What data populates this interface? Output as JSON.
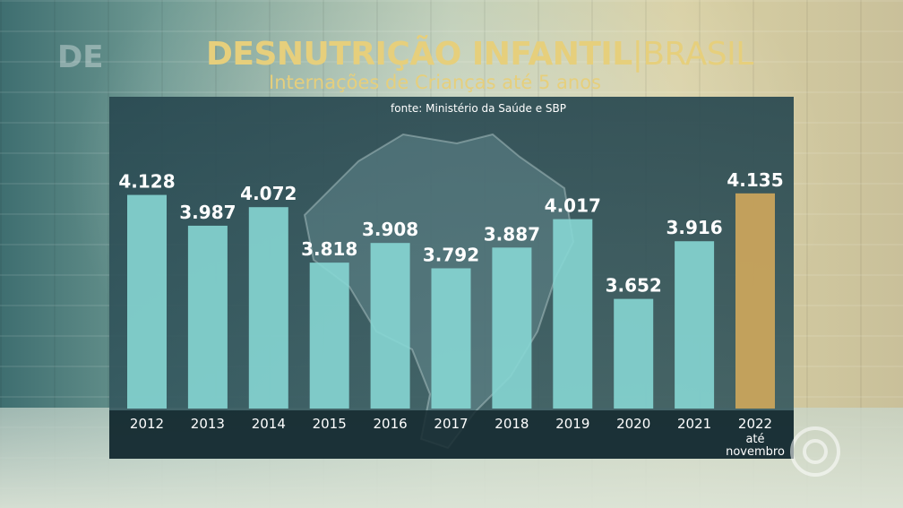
{
  "watermark_prefix": "DE",
  "header": {
    "title_main": "DESNUTRIÇÃO INFANTIL",
    "title_sep": "|",
    "title_region": "BRASIL",
    "subtitle": "Internações de Crianças até 5 anos",
    "source": "fonte: Ministério da Saúde e SBP"
  },
  "colors": {
    "bar": "#86d6d3",
    "highlight": "#c9a45c",
    "label": "#ffffff",
    "title": "#e6cf7c"
  },
  "chart_data": {
    "type": "bar",
    "title": "DESNUTRIÇÃO INFANTIL | BRASIL",
    "subtitle": "Internações de Crianças até 5 anos",
    "categories": [
      "2012",
      "2013",
      "2014",
      "2015",
      "2016",
      "2017",
      "2018",
      "2019",
      "2020",
      "2021",
      "2022"
    ],
    "category_notes": [
      "",
      "",
      "",
      "",
      "",
      "",
      "",
      "",
      "",
      "",
      "até novembro"
    ],
    "values": [
      4128,
      3987,
      4072,
      3818,
      3908,
      3792,
      3887,
      4017,
      3652,
      3916,
      4135
    ],
    "value_labels": [
      "4.128",
      "3.987",
      "4.072",
      "3.818",
      "3.908",
      "3.792",
      "3.887",
      "4.017",
      "3.652",
      "3.916",
      "4.135"
    ],
    "highlight_index": 10,
    "ylim": [
      3150,
      4200
    ],
    "grid": false,
    "legend": "none"
  }
}
